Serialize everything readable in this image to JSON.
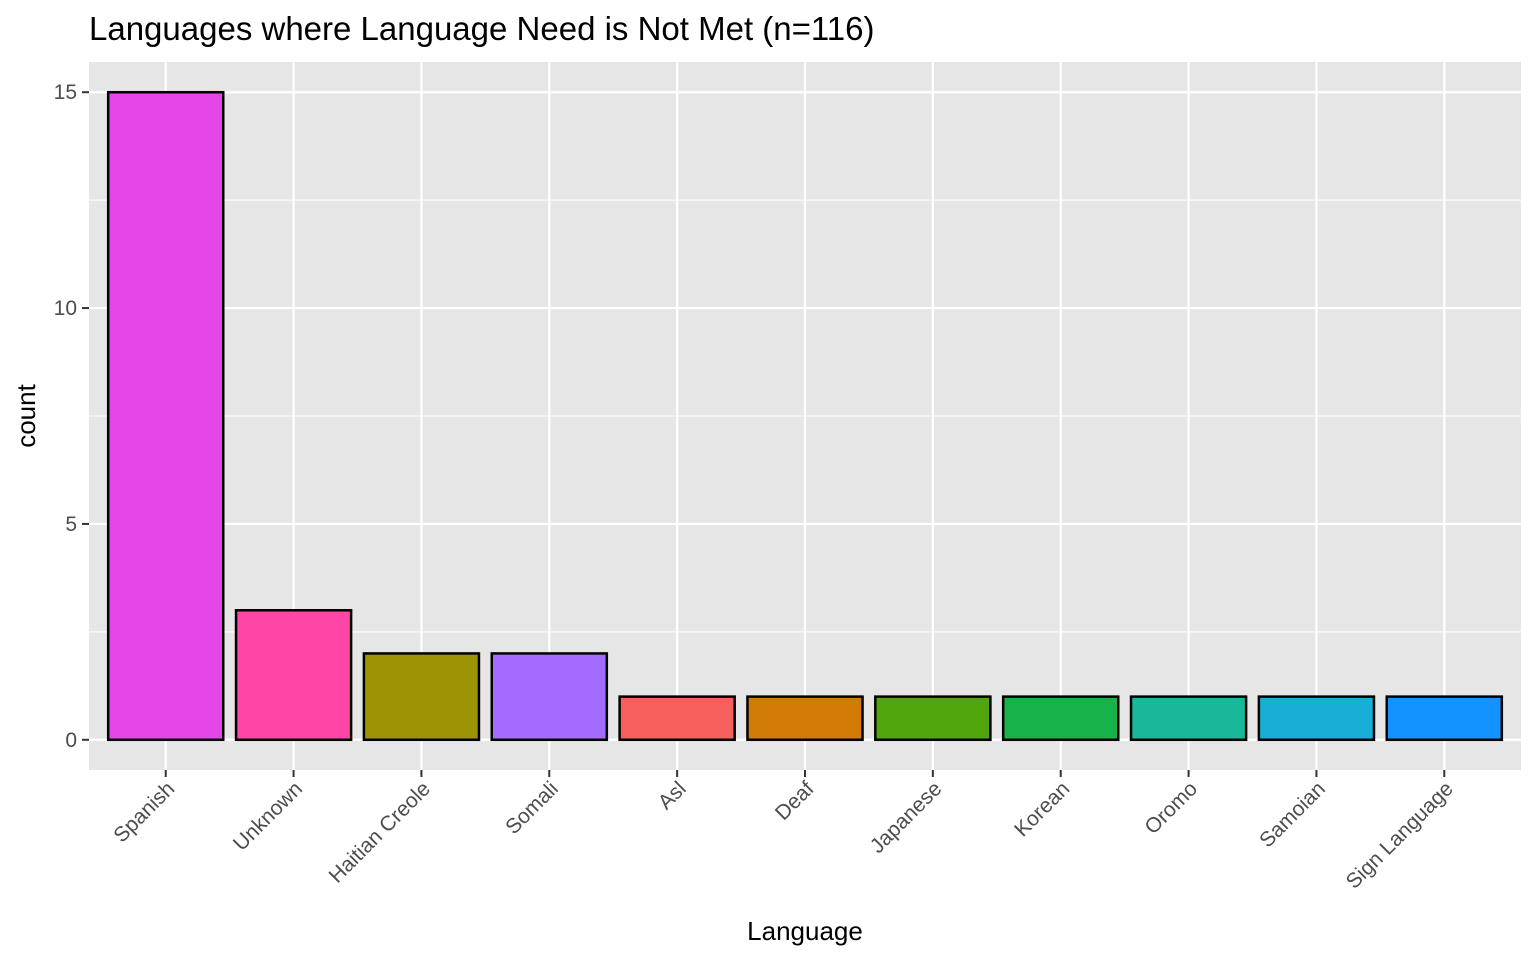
{
  "chart_data": {
    "type": "bar",
    "title": "Languages where Language Need is Not Met (n=116)",
    "xlabel": "Language",
    "ylabel": "count",
    "categories": [
      "Spanish",
      "Unknown",
      "Haitian Creole",
      "Somali",
      "Asl",
      "Deaf",
      "Japanese",
      "Korean",
      "Oromo",
      "Samoian",
      "Sign Language"
    ],
    "values": [
      15,
      3,
      2,
      2,
      1,
      1,
      1,
      1,
      1,
      1,
      1
    ],
    "colors": [
      "#E645E8",
      "#FF45A6",
      "#9C9305",
      "#A36CFF",
      "#F5605D",
      "#D17A05",
      "#52A60D",
      "#17B34A",
      "#1AB89A",
      "#17AFD6",
      "#1293FF"
    ],
    "ylim": [
      -0.7,
      15.7
    ],
    "yticks": [
      0,
      5,
      10,
      15
    ],
    "grid": true,
    "legend": "none",
    "panel_background": "#E6E6E6"
  }
}
